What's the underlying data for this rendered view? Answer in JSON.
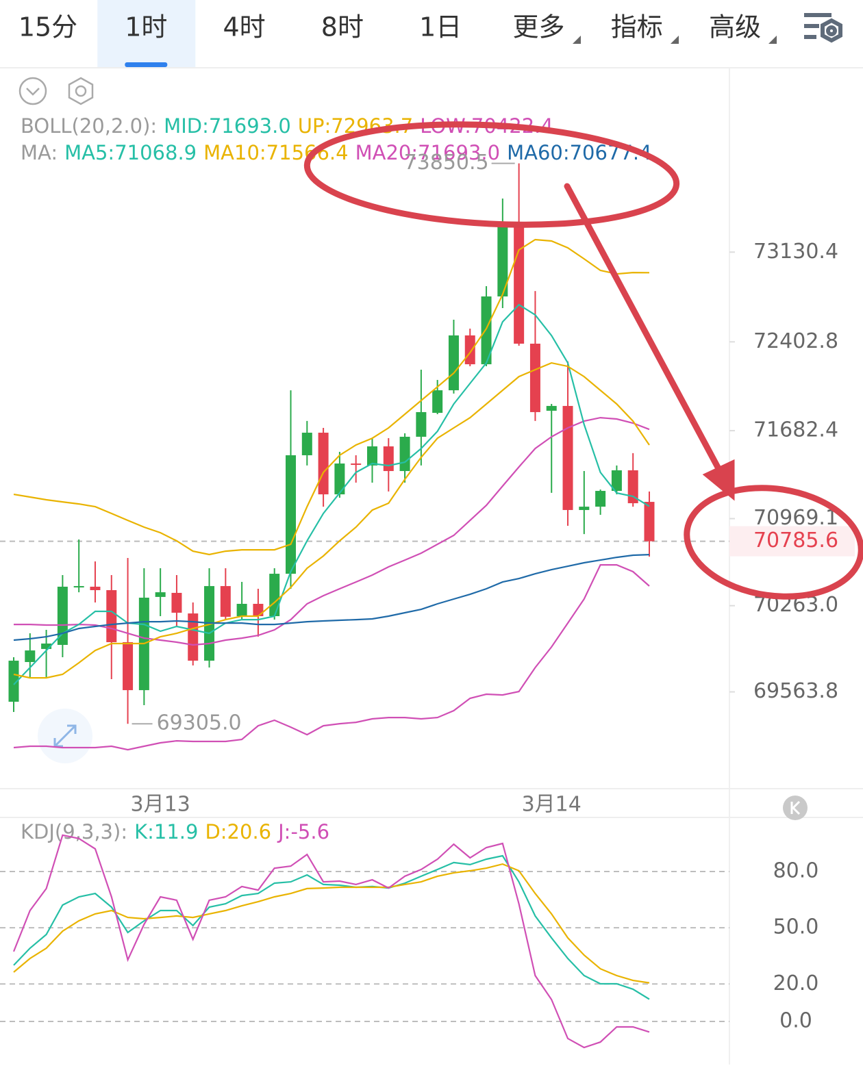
{
  "tabs": [
    "15分",
    "1时",
    "4时",
    "8时",
    "1日",
    "更多",
    "指标",
    "高级"
  ],
  "selected_tab": 1,
  "chart_data": [
    {
      "type": "candlestick",
      "categories": [
        null,
        null,
        null,
        null,
        null,
        null,
        null,
        null,
        null,
        "3月13",
        null,
        null,
        null,
        null,
        null,
        null,
        null,
        null,
        null,
        null,
        null,
        null,
        null,
        null,
        null,
        null,
        null,
        null,
        null,
        null,
        null,
        null,
        null,
        "3月14",
        null,
        null,
        null,
        null,
        null,
        null
      ],
      "open": [
        69484,
        69806,
        69912,
        69945,
        70411,
        70417,
        70389,
        69967,
        69578,
        70334,
        70367,
        70200,
        69817,
        70422,
        70178,
        70278,
        70178,
        70522,
        71483,
        71666,
        71166,
        71416,
        71400,
        71555,
        71355,
        71633,
        71827,
        72010,
        72455,
        72221,
        72771,
        73343,
        72388,
        71844,
        71883,
        71039,
        71066,
        71194,
        71361,
        71105
      ],
      "high": [
        69845,
        70039,
        70067,
        70511,
        70800,
        70622,
        70511,
        70650,
        70567,
        70567,
        70511,
        70289,
        70567,
        70567,
        70456,
        70400,
        70567,
        72010,
        71761,
        71705,
        71511,
        71483,
        71622,
        71622,
        71661,
        72177,
        72094,
        72582,
        72510,
        72854,
        73565,
        73850.5,
        72815,
        71899,
        72244,
        71355,
        71205,
        71400,
        71500,
        71189
      ],
      "low": [
        69401,
        69678,
        69678,
        69845,
        70372,
        70289,
        69667,
        69305.0,
        69456,
        70178,
        70095,
        69778,
        69762,
        70150,
        70150,
        70012,
        70150,
        70400,
        71400,
        71066,
        71139,
        71261,
        71261,
        71189,
        71261,
        71400,
        71816,
        71983,
        72205,
        72205,
        72677,
        72371,
        71761,
        71178,
        70911,
        70844,
        71000,
        71166,
        71066,
        70661
      ],
      "close": [
        69817,
        69900,
        69956,
        70417,
        70422,
        70389,
        69967,
        69578,
        70328,
        70372,
        70206,
        69817,
        70422,
        70173,
        70278,
        70178,
        70522,
        71483,
        71666,
        71166,
        71416,
        71405,
        71555,
        71355,
        71633,
        71833,
        72010,
        72455,
        72221,
        72771,
        73343,
        72388,
        71833,
        71883,
        71039,
        71066,
        71194,
        71361,
        71094,
        70785.6
      ],
      "up_color": "#2bab4c",
      "down_color": "#e5414f",
      "extreme_labels": [
        "73850.5",
        "69305.0"
      ],
      "legend": [
        [
          {
            "text": "BOLL(20,2.0):",
            "color": "#9a9a9a"
          },
          {
            "text": "MID:71693.0",
            "color": "#26bfa6"
          },
          {
            "text": "UP:72963.7",
            "color": "#e9b300"
          },
          {
            "text": "LOW:70422.4",
            "color": "#d04fb5"
          }
        ],
        [
          {
            "text": "MA:",
            "color": "#9a9a9a"
          },
          {
            "text": "MA5:71068.9",
            "color": "#26bfa6"
          },
          {
            "text": "MA10:71566.4",
            "color": "#e9b300"
          },
          {
            "text": "MA20:71693.0",
            "color": "#d04fb5"
          },
          {
            "text": "MA60:70677.4",
            "color": "#1f6aa8"
          }
        ]
      ],
      "series": [
        {
          "color": "#e9b300",
          "values": [
            71166,
            71144,
            71122,
            71105,
            71088,
            71066,
            71011,
            70955,
            70900,
            70855,
            70789,
            70705,
            70678,
            70705,
            70716,
            70716,
            70716,
            70761,
            71066,
            71344,
            71483,
            71566,
            71621,
            71705,
            71816,
            71927,
            72038,
            72149,
            72316,
            72510,
            72787,
            73148,
            73232,
            73221,
            73165,
            73076,
            72982,
            72954,
            72965,
            72963.7
          ]
        },
        {
          "color": "#d04fb5",
          "values": [
            70111,
            70111,
            70106,
            70106,
            70111,
            70106,
            70078,
            70039,
            70000,
            69984,
            69967,
            69945,
            69956,
            69984,
            70000,
            70022,
            70067,
            70150,
            70278,
            70344,
            70400,
            70455,
            70511,
            70578,
            70633,
            70689,
            70761,
            70833,
            70955,
            71077,
            71233,
            71388,
            71538,
            71633,
            71705,
            71760,
            71788,
            71777,
            71744,
            71693.0
          ]
        },
        {
          "color": "#d04fb5",
          "values": [
            69112,
            69123,
            69123,
            69112,
            69112,
            69112,
            69123,
            69095,
            69123,
            69151,
            69167,
            69162,
            69162,
            69162,
            69178,
            69289,
            69334,
            69278,
            69217,
            69289,
            69306,
            69317,
            69345,
            69356,
            69356,
            69345,
            69356,
            69412,
            69512,
            69545,
            69539,
            69567,
            69761,
            69928,
            70122,
            70317,
            70594,
            70594,
            70539,
            70422.4
          ]
        },
        {
          "color": "#26bfa6",
          "values": [
            69623,
            69761,
            69900,
            70039,
            70111,
            70217,
            70217,
            70122,
            70111,
            70056,
            70095,
            70067,
            70039,
            70122,
            70150,
            70150,
            70178,
            70539,
            70789,
            71011,
            71177,
            71344,
            71416,
            71399,
            71427,
            71538,
            71677,
            71899,
            72066,
            72232,
            72565,
            72704,
            72621,
            72454,
            72232,
            71733,
            71344,
            71177,
            71150,
            71068.9
          ]
        },
        {
          "color": "#e9b300",
          "values": [
            69706,
            69678,
            69678,
            69706,
            69800,
            69900,
            69956,
            69956,
            69956,
            70011,
            70039,
            70078,
            70111,
            70150,
            70178,
            70178,
            70289,
            70411,
            70567,
            70666,
            70789,
            70900,
            71038,
            71094,
            71288,
            71466,
            71621,
            71705,
            71788,
            71899,
            72010,
            72121,
            72177,
            72232,
            72204,
            72121,
            72010,
            71899,
            71760,
            71566.4
          ]
        },
        {
          "color": "#1f6aa8",
          "values": [
            69984,
            69995,
            70011,
            70039,
            70078,
            70095,
            70111,
            70122,
            70133,
            70133,
            70139,
            70133,
            70122,
            70122,
            70122,
            70111,
            70111,
            70122,
            70133,
            70139,
            70145,
            70150,
            70156,
            70178,
            70206,
            70233,
            70278,
            70317,
            70355,
            70400,
            70455,
            70483,
            70522,
            70555,
            70583,
            70611,
            70633,
            70655,
            70672,
            70677.4
          ]
        }
      ],
      "ylim": [
        68790,
        74620
      ],
      "yticks": [
        73130.4,
        72402.8,
        71682.4,
        70969.1,
        {
          "value": 70263.0,
          "label": "70263.0"
        },
        69563.8
      ],
      "grid": false
    },
    {
      "type": "line",
      "legend": [
        [
          {
            "text": "KDJ(9,3,3):",
            "color": "#9a9a9a"
          },
          {
            "text": "K:11.9",
            "color": "#26bfa6"
          },
          {
            "text": "D:20.6",
            "color": "#e9b300"
          },
          {
            "text": "J:-5.6",
            "color": "#d04fb5"
          }
        ]
      ],
      "series": [
        {
          "color": "#26bfa6",
          "values": [
            30,
            39.1,
            46.4,
            62.1,
            66.5,
            68.3,
            61,
            47.5,
            53.7,
            59.2,
            59.2,
            51.2,
            61,
            62.8,
            67.2,
            68.3,
            73.8,
            74.5,
            78.2,
            73.1,
            72.7,
            71.6,
            72,
            71.2,
            73.8,
            77.5,
            81.1,
            84.8,
            83.7,
            86.6,
            88.4,
            74.5,
            56.3,
            44.6,
            33.6,
            24.5,
            20.1,
            20.1,
            17.2,
            11.9
          ]
        },
        {
          "color": "#e9b300",
          "values": [
            26.3,
            33.6,
            39.1,
            48.2,
            53.7,
            57.4,
            59.2,
            55.5,
            54.8,
            55.5,
            56.3,
            55.5,
            57.4,
            59.2,
            61.7,
            63.9,
            66.5,
            68.3,
            70.9,
            71.2,
            71.6,
            71.6,
            71.6,
            71.6,
            73.1,
            74.5,
            77.5,
            79.3,
            80.4,
            81.8,
            84,
            80.4,
            68.3,
            57.4,
            44.6,
            35.4,
            28.1,
            24.5,
            21.9,
            20.6
          ]
        },
        {
          "color": "#d04fb5",
          "values": [
            37.3,
            59.2,
            70.9,
            99.4,
            97.6,
            92.1,
            66.5,
            32.9,
            51.9,
            66.5,
            64.7,
            43.8,
            64.7,
            66.5,
            72,
            70.1,
            81.8,
            82.9,
            89.1,
            74.5,
            74.9,
            73.1,
            75.6,
            71.2,
            77.5,
            81.1,
            86.6,
            94.6,
            87.3,
            92.8,
            95,
            62.8,
            24.5,
            11.7,
            -9.1,
            -13.9,
            -11,
            -2.9,
            -2.9,
            -5.6
          ]
        }
      ],
      "ylim": [
        -23,
        108.5
      ],
      "yticks": [
        {
          "value": 80,
          "label": "80.0"
        },
        {
          "value": 50,
          "label": "50.0"
        },
        {
          "value": 20,
          "label": "20.0"
        },
        {
          "value": 0,
          "label": "0.0"
        }
      ],
      "grid": true
    }
  ]
}
